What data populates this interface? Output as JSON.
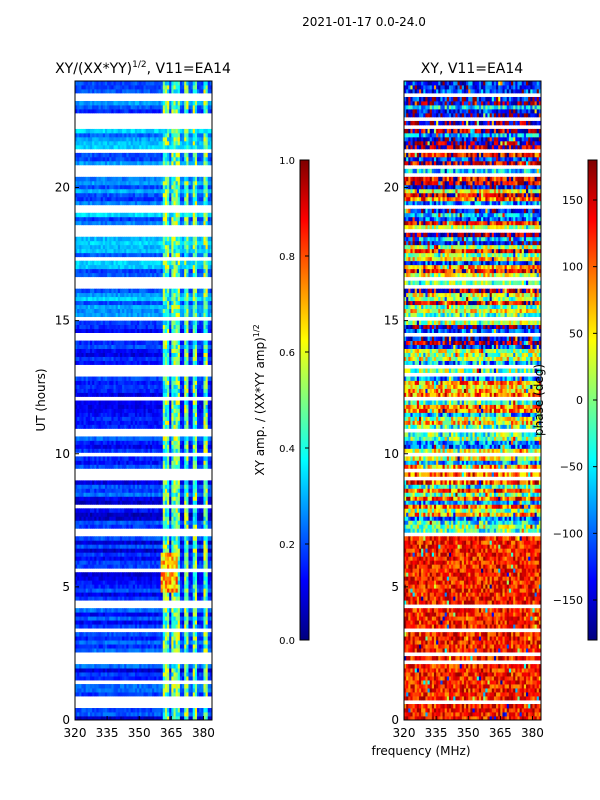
{
  "suptitle": "2021-01-17 0.0-24.0",
  "shared_xlabel": "frequency (MHz)",
  "colors": {
    "jet": [
      "#00007f",
      "#0000ff",
      "#007fff",
      "#00ffff",
      "#7fff7f",
      "#ffff00",
      "#ff7f00",
      "#ff0000",
      "#7f0000"
    ]
  },
  "chart_data": [
    {
      "type": "heatmap",
      "title_main": "XY/(XX*YY)",
      "title_sup": "1/2",
      "title_tail": ", V11=EA14",
      "xlabel": "",
      "ylabel": "UT (hours)",
      "xlim": [
        320,
        384
      ],
      "ylim": [
        0,
        24
      ],
      "x_ticks": [
        320,
        335,
        350,
        365,
        380
      ],
      "y_ticks": [
        0,
        5,
        10,
        15,
        20
      ],
      "colorbar": {
        "label_main": "XY amp. / (XX*YY amp)",
        "label_sup": "1/2",
        "range": [
          0.0,
          1.0
        ],
        "ticks": [
          "0.0",
          "0.2",
          "0.4",
          "0.6",
          "0.8",
          "1.0"
        ]
      },
      "features": {
        "bright_channels_mhz": [
          362,
          363,
          366,
          367,
          368,
          372,
          376,
          381
        ],
        "hot_spot_hours": [
          5.2,
          6.0
        ]
      }
    },
    {
      "type": "heatmap",
      "title_main": "XY, V11=EA14",
      "xlabel": "frequency (MHz)",
      "ylabel": "",
      "xlim": [
        320,
        384
      ],
      "ylim": [
        0,
        24
      ],
      "x_ticks": [
        320,
        335,
        350,
        365,
        380
      ],
      "y_ticks": [
        0,
        5,
        10,
        15,
        20
      ],
      "colorbar": {
        "label_main": "phase (deg)",
        "range": [
          -180,
          180
        ],
        "ticks": [
          "−150",
          "−100",
          "−50",
          "0",
          "50",
          "100",
          "150"
        ]
      },
      "features": {
        "structure": "horizontal banded phase with red dominant below 7 h"
      }
    }
  ]
}
